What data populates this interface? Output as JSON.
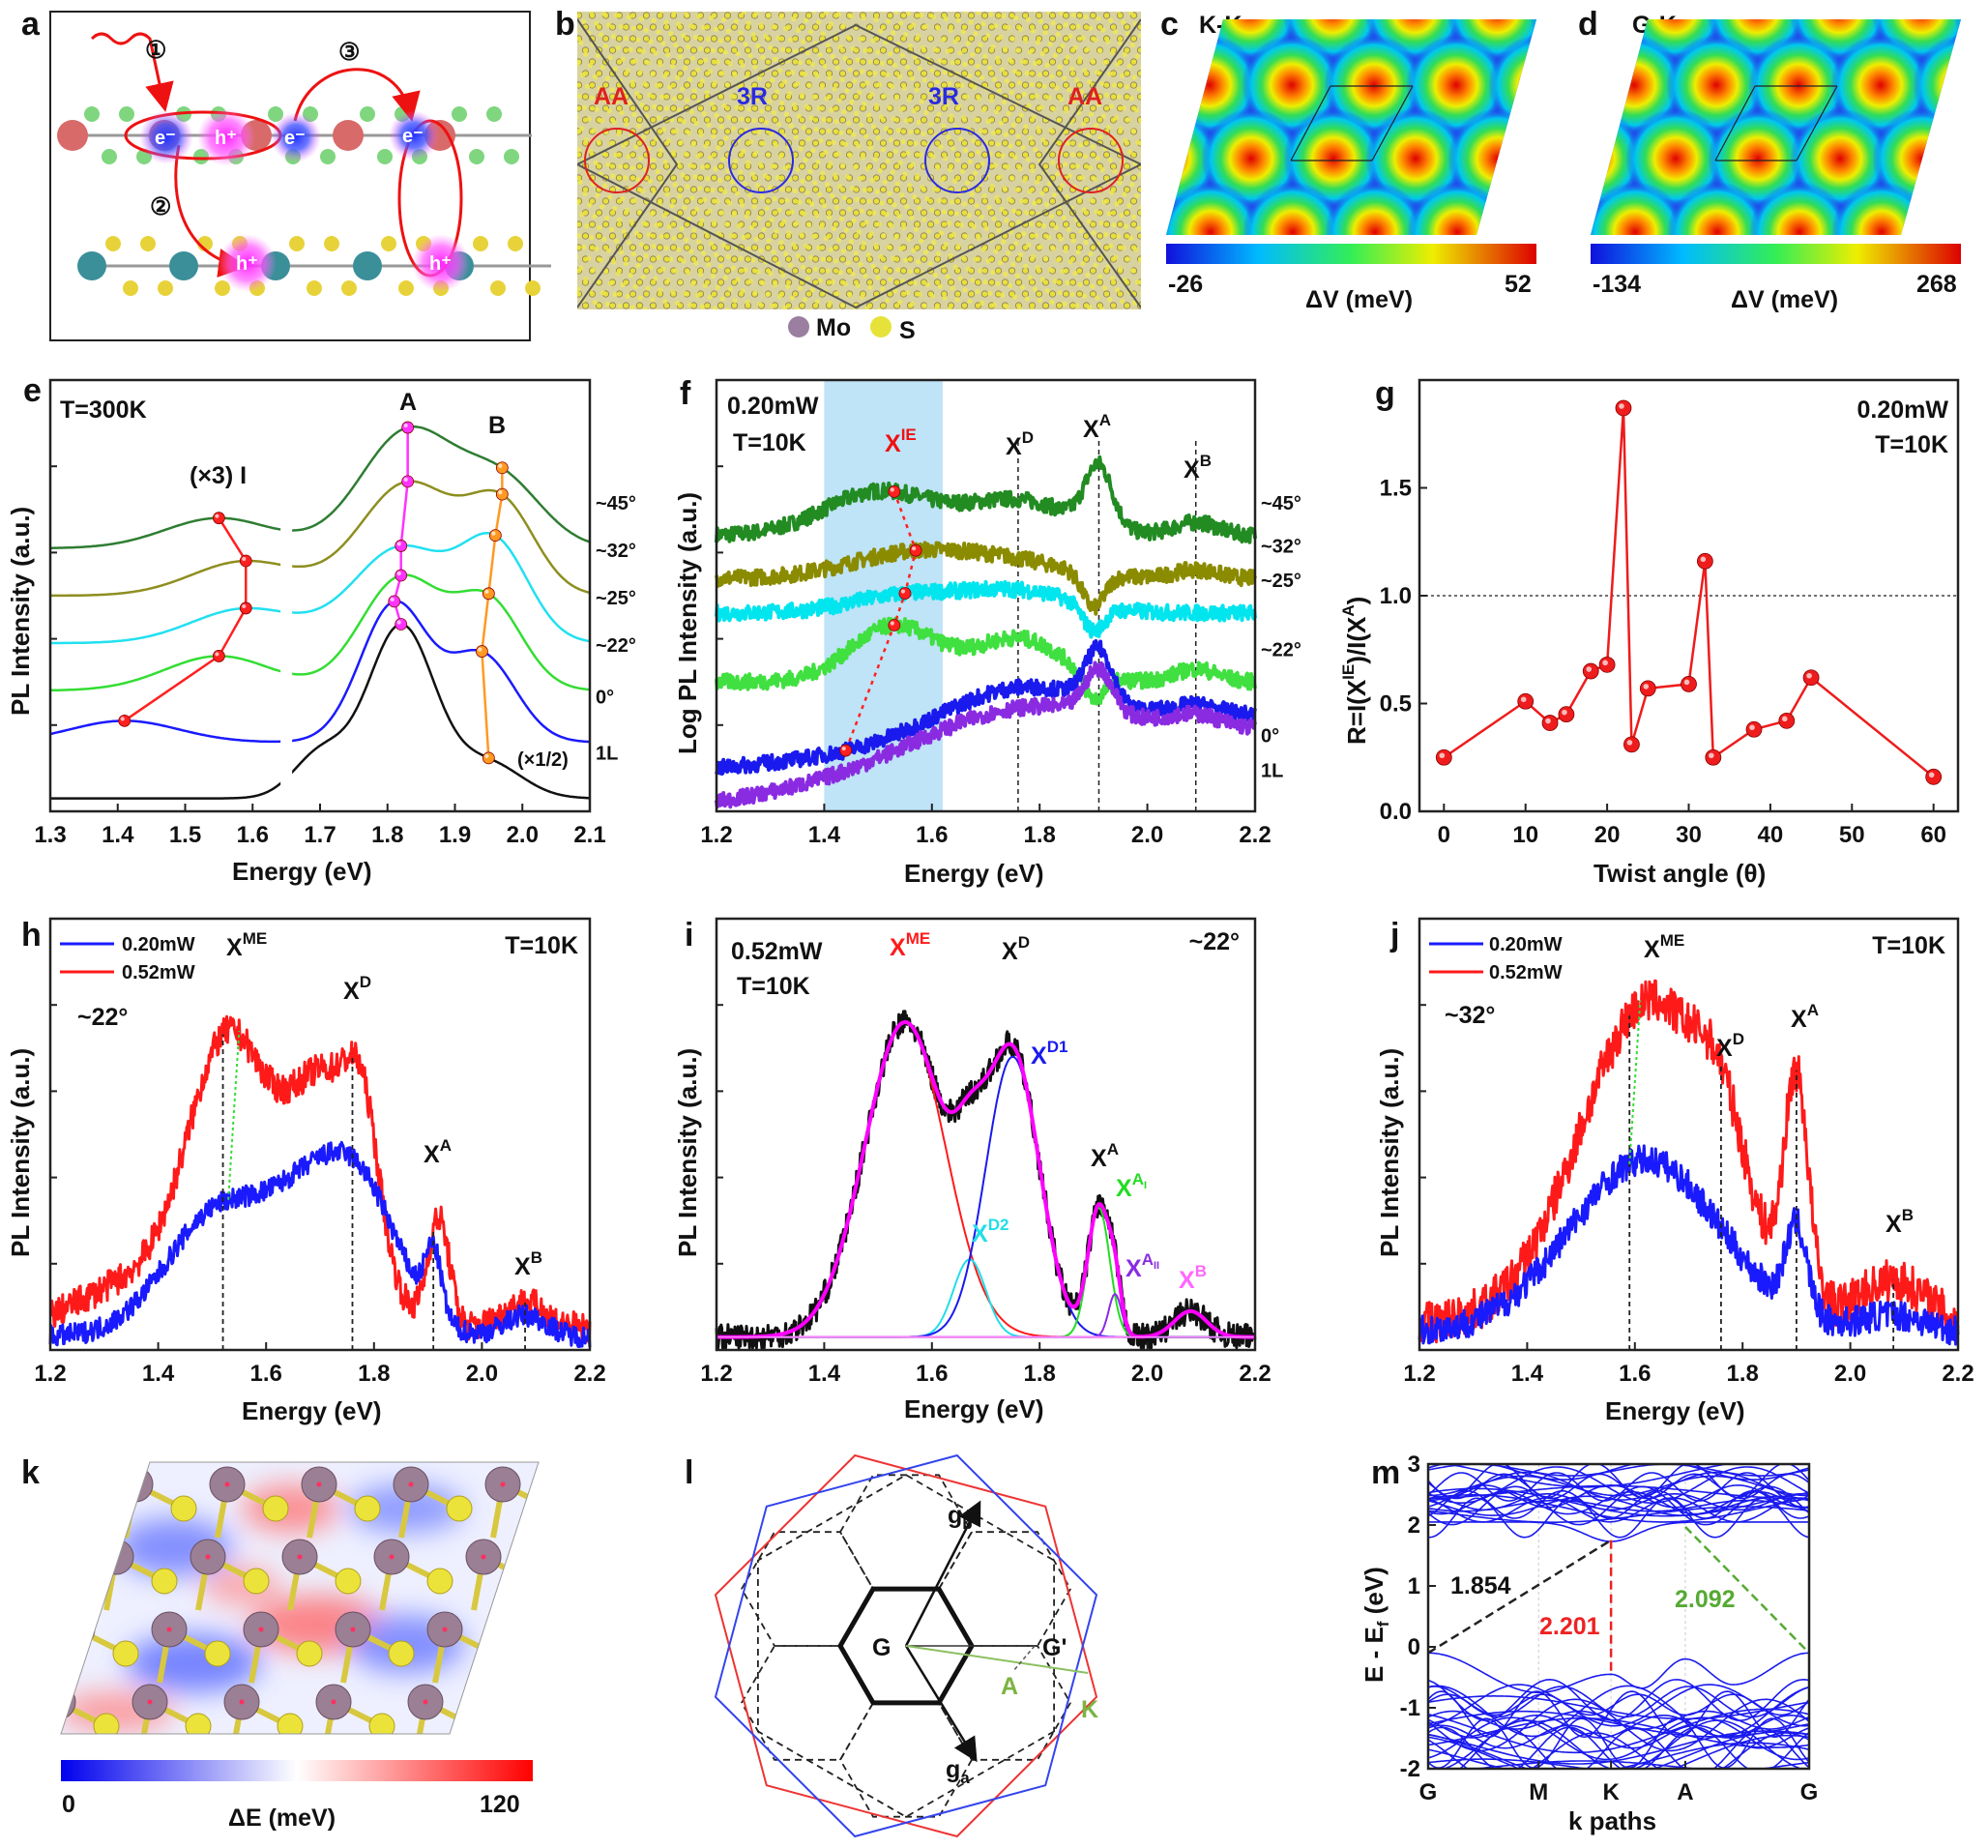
{
  "panel_letters": {
    "a": "a",
    "b": "b",
    "c": "c",
    "d": "d",
    "e": "e",
    "f": "f",
    "g": "g",
    "h": "h",
    "i": "i",
    "j": "j",
    "k": "k",
    "l": "l",
    "m": "m"
  },
  "panel_a": {
    "steps": [
      "①",
      "②",
      "③"
    ],
    "electron": "e⁻",
    "hole": "h⁺"
  },
  "panel_b": {
    "regions": [
      "AA",
      "3R",
      "3R",
      "AA"
    ],
    "legend": [
      "Mo",
      "S"
    ],
    "colors": {
      "Mo": "#9a7fa0",
      "S": "#e6e23a",
      "AA": "#e02020",
      "3R": "#2a2ae0"
    }
  },
  "panel_c": {
    "title": "K-K",
    "colorbar": {
      "min": "-26",
      "max": "52",
      "label": "ΔV (meV)"
    }
  },
  "panel_d": {
    "title": "G-K",
    "colorbar": {
      "min": "-134",
      "max": "268",
      "label": "ΔV (meV)"
    }
  },
  "panel_k": {
    "colorbar": {
      "min": "0",
      "max": "120",
      "label": "ΔE (meV)"
    }
  },
  "panel_l": {
    "labels": {
      "G": "G",
      "Gp": "G'",
      "gb": "g",
      "gb_sub": "b",
      "ga": "g",
      "ga_sub": "a",
      "A": "A",
      "K": "K"
    }
  },
  "chart_data": [
    {
      "id": "e",
      "type": "line",
      "xlabel": "Energy (eV)",
      "ylabel": "PL Intensity (a.u.)",
      "xlim": [
        1.3,
        2.1
      ],
      "ylim": [
        0,
        10
      ],
      "xticks": [
        "1.3",
        "1.4",
        "1.5",
        "1.6",
        "1.7",
        "1.8",
        "1.9",
        "2.0",
        "2.1"
      ],
      "axis_break": 1.65,
      "annotations": {
        "temp": "T=300K",
        "A": "A",
        "B": "B",
        "I": "(×3) I",
        "half": "(×1/2)"
      },
      "series": [
        {
          "name": "~45°",
          "color": "#2e7d32",
          "base": 6.1,
          "peaks": [
            [
              1.55,
              0.7,
              0.08
            ],
            [
              1.83,
              2.7,
              0.07
            ],
            [
              1.97,
              1.5,
              0.06
            ]
          ]
        },
        {
          "name": "~32°",
          "color": "#8e8e20",
          "base": 5.0,
          "peaks": [
            [
              1.59,
              0.8,
              0.08
            ],
            [
              1.83,
              2.6,
              0.07
            ],
            [
              1.97,
              2.0,
              0.05
            ]
          ]
        },
        {
          "name": "~25°",
          "color": "#22e0f0",
          "base": 3.9,
          "peaks": [
            [
              1.59,
              0.8,
              0.08
            ],
            [
              1.82,
              2.2,
              0.07
            ],
            [
              1.96,
              2.2,
              0.05
            ]
          ]
        },
        {
          "name": "~22°",
          "color": "#33dd33",
          "base": 2.8,
          "peaks": [
            [
              1.55,
              0.8,
              0.08
            ],
            [
              1.82,
              2.6,
              0.06
            ],
            [
              1.95,
              2.0,
              0.05
            ]
          ]
        },
        {
          "name": "0°",
          "color": "#1a1aff",
          "base": 1.6,
          "peaks": [
            [
              1.41,
              0.5,
              0.08
            ],
            [
              1.81,
              3.2,
              0.05
            ],
            [
              1.94,
              2.0,
              0.05
            ]
          ]
        },
        {
          "name": "1L",
          "color": "#111111",
          "base": 0.3,
          "peaks": [
            [
              1.7,
              1.0,
              0.04
            ],
            [
              1.82,
              4.0,
              0.05
            ],
            [
              1.95,
              0.8,
              0.05
            ]
          ]
        }
      ],
      "markers": [
        {
          "label": "I",
          "color": "#ff2020",
          "x": [
            1.55,
            1.59,
            1.59,
            1.55,
            1.41,
            null
          ]
        },
        {
          "label": "A",
          "color": "#ff33ff",
          "x": [
            1.83,
            1.83,
            1.82,
            1.82,
            1.81,
            1.82
          ]
        },
        {
          "label": "B",
          "color": "#ff9922",
          "x": [
            1.97,
            1.97,
            1.96,
            1.95,
            1.94,
            1.95
          ]
        }
      ]
    },
    {
      "id": "f",
      "type": "line",
      "xlabel": "Energy (eV)",
      "ylabel": "Log PL Intensity (a.u.)",
      "xlim": [
        1.2,
        2.2
      ],
      "ylim": [
        0,
        10
      ],
      "xticks": [
        "1.2",
        "1.4",
        "1.6",
        "1.8",
        "2.0",
        "2.2"
      ],
      "shade": [
        1.4,
        1.62
      ],
      "shade_color": "#bfe3f7",
      "vlines": [
        1.76,
        1.91,
        2.09
      ],
      "annotations": {
        "power": "0.20mW",
        "temp": "T=10K",
        "XIE": "IE",
        "XD": "D",
        "XA": "A",
        "XB": "B",
        "X": "X"
      },
      "series": [
        {
          "name": "~45°",
          "color": "#228b22",
          "base": 6.4,
          "noise": 0.18,
          "peaks": [
            [
              1.5,
              1.0,
              0.1
            ],
            [
              1.76,
              0.8,
              0.1
            ],
            [
              1.91,
              1.4,
              0.025
            ],
            [
              2.09,
              0.3,
              0.04
            ]
          ]
        },
        {
          "name": "~32°",
          "color": "#8b8b00",
          "base": 5.4,
          "noise": 0.18,
          "peaks": [
            [
              1.57,
              0.6,
              0.12
            ],
            [
              1.76,
              0.3,
              0.1
            ],
            [
              1.9,
              -0.8,
              0.02
            ],
            [
              2.09,
              0.2,
              0.04
            ]
          ]
        },
        {
          "name": "~25°",
          "color": "#00e5ee",
          "base": 4.6,
          "noise": 0.18,
          "peaks": [
            [
              1.55,
              0.4,
              0.1
            ],
            [
              1.76,
              0.5,
              0.1
            ],
            [
              1.9,
              -0.6,
              0.02
            ]
          ]
        },
        {
          "name": "~22°",
          "color": "#40e040",
          "base": 3.0,
          "noise": 0.18,
          "peaks": [
            [
              1.53,
              1.3,
              0.08
            ],
            [
              1.76,
              1.0,
              0.08
            ],
            [
              1.9,
              -0.6,
              0.02
            ],
            [
              2.09,
              0.3,
              0.04
            ]
          ]
        },
        {
          "name": "0°",
          "color": "#1a1aee",
          "base": 1.0,
          "noise": 0.18,
          "slope": 1.2,
          "peaks": [
            [
              1.76,
              1.2,
              0.15
            ],
            [
              1.91,
              1.2,
              0.025
            ],
            [
              2.09,
              0.3,
              0.05
            ]
          ]
        },
        {
          "name": "1L",
          "color": "#8a2be2",
          "base": 0.2,
          "noise": 0.18,
          "slope": 1.6,
          "peaks": [
            [
              1.76,
              1.3,
              0.2
            ],
            [
              1.91,
              1.0,
              0.025
            ],
            [
              2.09,
              0.3,
              0.05
            ]
          ]
        }
      ],
      "markers": [
        {
          "label": "XIE",
          "color": "#ff2020",
          "dotted": true,
          "x": [
            1.53,
            1.57,
            1.55,
            1.53,
            1.44,
            null
          ]
        }
      ]
    },
    {
      "id": "g",
      "type": "line",
      "xlabel": "Twist angle (θ)",
      "ylabel": "R=I(X",
      "ylabel_sup1": "IE",
      "ylabel_mid": ")/I(X",
      "ylabel_sup2": "A",
      "ylabel_end": ")",
      "xlim": [
        -3,
        63
      ],
      "ylim": [
        0,
        2.0
      ],
      "xticks": [
        "0",
        "10",
        "20",
        "30",
        "40",
        "50",
        "60"
      ],
      "yticks": [
        "0.0",
        "0.5",
        "1.0",
        "1.5"
      ],
      "hline": 1.0,
      "annotations": {
        "power": "0.20mW",
        "temp": "T=10K"
      },
      "color": "#ee1c1c",
      "x": [
        0,
        10,
        13,
        15,
        18,
        20,
        22,
        23,
        25,
        30,
        32,
        33,
        38,
        42,
        45,
        60
      ],
      "y": [
        0.25,
        0.51,
        0.41,
        0.45,
        0.65,
        0.68,
        1.87,
        0.31,
        0.57,
        0.59,
        1.16,
        0.25,
        0.38,
        0.42,
        0.62,
        0.16
      ]
    },
    {
      "id": "h",
      "type": "line",
      "xlabel": "Energy (eV)",
      "ylabel": "PL Intensity (a.u.)",
      "xlim": [
        1.2,
        2.2
      ],
      "ylim": [
        0,
        10
      ],
      "xticks": [
        "1.2",
        "1.4",
        "1.6",
        "1.8",
        "2.0",
        "2.2"
      ],
      "vlines": [
        1.52,
        1.76,
        1.91,
        2.08
      ],
      "annotations": {
        "temp": "T=10K",
        "angle": "~22°",
        "X": "X",
        "XME": "ME",
        "XD": "D",
        "XA": "A",
        "XB": "B"
      },
      "arrow_x": 1.53,
      "series": [
        {
          "name": "0.20mW",
          "color": "#1a1aff",
          "base": 0.3,
          "noise": 0.25,
          "peaks": [
            [
              1.52,
              3.0,
              0.1
            ],
            [
              1.76,
              3.8,
              0.08
            ],
            [
              1.91,
              1.5,
              0.015
            ],
            [
              2.08,
              0.5,
              0.04
            ],
            [
              1.65,
              1.0,
              0.06
            ]
          ]
        },
        {
          "name": "0.52mW",
          "color": "#ff1a1a",
          "base": 0.5,
          "noise": 0.35,
          "peaks": [
            [
              1.53,
              6.5,
              0.075
            ],
            [
              1.71,
              5.5,
              0.07
            ],
            [
              1.78,
              2.5,
              0.03
            ],
            [
              1.92,
              2.5,
              0.02
            ],
            [
              2.08,
              0.6,
              0.04
            ],
            [
              1.35,
              1.0,
              0.1
            ]
          ]
        }
      ]
    },
    {
      "id": "i",
      "type": "line",
      "xlabel": "Energy (eV)",
      "ylabel": "PL Intensity (a.u.)",
      "xlim": [
        1.2,
        2.2
      ],
      "ylim": [
        0,
        10
      ],
      "xticks": [
        "1.2",
        "1.4",
        "1.6",
        "1.8",
        "2.0",
        "2.2"
      ],
      "annotations": {
        "power": "0.52mW",
        "temp": "T=10K",
        "angle": "~22°",
        "X": "X"
      },
      "data_color": "#111111",
      "fit_color": "#ff00ff",
      "base": 0.3,
      "noise": 0.3,
      "components": [
        {
          "name": "ME",
          "color": "#ff1a1a",
          "peak": [
            1.55,
            7.3,
            0.075
          ]
        },
        {
          "name": "D2",
          "color": "#22dde8",
          "peak": [
            1.67,
            1.8,
            0.03
          ]
        },
        {
          "name": "D1",
          "color": "#1a1aee",
          "peak": [
            1.75,
            6.5,
            0.05
          ]
        },
        {
          "name": "A",
          "sub": "I",
          "color": "#22dd22",
          "peak": [
            1.91,
            3.0,
            0.02
          ]
        },
        {
          "name": "A",
          "sub": "II",
          "color": "#8a2be2",
          "peak": [
            1.94,
            1.0,
            0.012
          ]
        },
        {
          "name": "B",
          "color": "#ff66ff",
          "peak": [
            2.08,
            0.6,
            0.03
          ]
        }
      ],
      "labels": {
        "XD": "D",
        "XA": "A"
      }
    },
    {
      "id": "j",
      "type": "line",
      "xlabel": "Energy (eV)",
      "ylabel": "PL Intensity (a.u.)",
      "xlim": [
        1.2,
        2.2
      ],
      "ylim": [
        0,
        10
      ],
      "xticks": [
        "1.2",
        "1.4",
        "1.6",
        "1.8",
        "2.0",
        "2.2"
      ],
      "vlines": [
        1.59,
        1.76,
        1.9,
        2.08
      ],
      "annotations": {
        "temp": "T=10K",
        "angle": "~32°",
        "X": "X",
        "XME": "ME",
        "XD": "D",
        "XA": "A",
        "XB": "B"
      },
      "arrow_x": 1.59,
      "series": [
        {
          "name": "0.20mW",
          "color": "#1a1aff",
          "base": 0.4,
          "noise": 0.35,
          "peaks": [
            [
              1.62,
              4.0,
              0.14
            ],
            [
              1.9,
              2.0,
              0.02
            ],
            [
              2.08,
              0.4,
              0.06
            ]
          ]
        },
        {
          "name": "0.52mW",
          "color": "#ff1a1a",
          "base": 0.6,
          "noise": 0.5,
          "peaks": [
            [
              1.63,
              7.5,
              0.13
            ],
            [
              1.76,
              1.5,
              0.04
            ],
            [
              1.9,
              5.0,
              0.022
            ],
            [
              2.08,
              1.0,
              0.06
            ]
          ]
        }
      ]
    },
    {
      "id": "m",
      "type": "line",
      "xlabel": "k paths",
      "ylabel": "E - E",
      "ylabel_sub": "f",
      "ylabel_unit": " (eV)",
      "ylim": [
        -2,
        3
      ],
      "xticks": [
        "G",
        "M",
        "K",
        "A",
        "G"
      ],
      "k_positions": [
        0,
        0.29,
        0.48,
        0.675,
        1
      ],
      "yticks": [
        "-2",
        "-1",
        "0",
        "1",
        "2",
        "3"
      ],
      "band_color": "#1a1aee",
      "gaps": [
        {
          "value": "1.854",
          "color": "#222222",
          "from": [
            "G",
            -0.1
          ],
          "to": [
            "K",
            1.75
          ]
        },
        {
          "value": "2.201",
          "color": "#ee2222",
          "from": [
            "K",
            1.75
          ],
          "to": [
            "K",
            -0.45
          ]
        },
        {
          "value": "2.092",
          "color": "#55aa33",
          "from": [
            "A",
            1.97
          ],
          "to": [
            "G",
            -0.1
          ]
        }
      ]
    }
  ]
}
